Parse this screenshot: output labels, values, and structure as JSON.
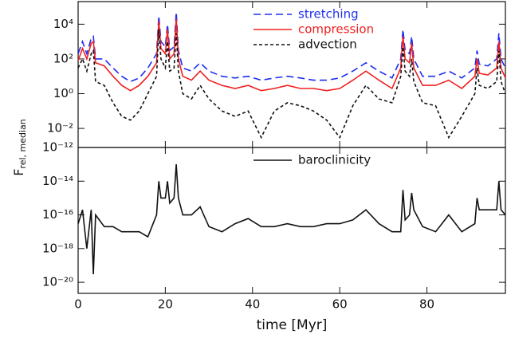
{
  "chart_data": [
    {
      "type": "line",
      "ylabel": "F",
      "ylabel_sub": "rel, median",
      "log_y": true,
      "legend": "upper right",
      "xlim": [
        0,
        98
      ],
      "xticks": [
        0,
        20,
        40,
        60,
        80
      ],
      "ylim": [
        0.0008,
        200000
      ],
      "yticks": [
        {
          "value": 0.01,
          "label": "10⁻²"
        },
        {
          "value": 1,
          "label": "10⁰"
        },
        {
          "value": 100,
          "label": "10²"
        },
        {
          "value": 10000,
          "label": "10⁴"
        }
      ],
      "x": [
        0,
        1,
        2,
        3,
        3.5,
        4,
        6,
        8,
        10,
        12,
        14,
        16,
        18,
        18.5,
        19,
        20,
        20.5,
        21,
        22,
        22.5,
        23,
        24,
        26,
        28,
        30,
        33,
        36,
        39,
        42,
        45,
        48,
        51,
        54,
        57,
        60,
        63,
        66,
        69,
        72,
        74,
        74.5,
        75,
        76,
        76.5,
        77,
        79,
        82,
        85,
        88,
        91,
        91.5,
        92,
        94,
        96,
        96.5,
        97,
        98
      ],
      "series": [
        {
          "name": "stretching",
          "color": "#1f2ff0",
          "dash": "9,5",
          "values": [
            200,
            1000,
            200,
            1500,
            2000,
            100,
            100,
            30,
            10,
            5,
            8,
            30,
            200,
            30000,
            1000,
            500,
            10000,
            300,
            500,
            50000,
            300,
            30,
            20,
            60,
            20,
            10,
            8,
            10,
            6,
            8,
            10,
            8,
            6,
            6,
            8,
            20,
            60,
            20,
            8,
            100,
            5000,
            300,
            200,
            2000,
            100,
            10,
            10,
            20,
            8,
            30,
            300,
            50,
            40,
            100,
            3000,
            100,
            30
          ]
        },
        {
          "name": "compression",
          "color": "#f02020",
          "dash": "none",
          "values": [
            80,
            400,
            100,
            800,
            1000,
            60,
            40,
            10,
            3,
            1.5,
            3,
            10,
            60,
            15000,
            400,
            200,
            5000,
            100,
            200,
            20000,
            100,
            10,
            6,
            20,
            6,
            3,
            2,
            3,
            1.5,
            2,
            3,
            2,
            2,
            1.5,
            2,
            6,
            20,
            6,
            2,
            30,
            2000,
            100,
            60,
            800,
            30,
            3,
            3,
            6,
            2,
            10,
            100,
            15,
            12,
            30,
            1000,
            30,
            8
          ]
        },
        {
          "name": "advection",
          "color": "#111111",
          "dash": "4,3",
          "values": [
            30,
            100,
            20,
            200,
            300,
            5,
            3,
            0.3,
            0.05,
            0.03,
            0.1,
            1,
            10,
            5000,
            100,
            30,
            1000,
            20,
            30,
            3000,
            20,
            1,
            0.5,
            3,
            0.5,
            0.1,
            0.05,
            0.1,
            0.003,
            0.1,
            0.3,
            0.2,
            0.1,
            0.03,
            0.003,
            0.2,
            3,
            0.5,
            0.3,
            10,
            500,
            20,
            10,
            100,
            5,
            0.3,
            0.2,
            0.003,
            0.05,
            1,
            30,
            3,
            2,
            5,
            300,
            5,
            1
          ]
        }
      ]
    },
    {
      "type": "line",
      "xlabel": "time [Myr]",
      "log_y": true,
      "legend": "upper center",
      "xlim": [
        0,
        98
      ],
      "xticks": [
        0,
        20,
        40,
        60,
        80
      ],
      "ylim": [
        2.2e-21,
        1e-12
      ],
      "yticks": [
        {
          "value": 1e-20,
          "label": "10⁻²⁰"
        },
        {
          "value": 1e-18,
          "label": "10⁻¹⁸"
        },
        {
          "value": 1e-16,
          "label": "10⁻¹⁶"
        },
        {
          "value": 1e-14,
          "label": "10⁻¹⁴"
        },
        {
          "value": 1e-12,
          "label": "10⁻¹²"
        }
      ],
      "x": [
        0,
        1,
        2,
        3,
        3.5,
        4,
        6,
        8,
        10,
        12,
        14,
        16,
        18,
        18.5,
        19,
        20,
        20.5,
        21,
        22,
        22.5,
        23,
        24,
        26,
        28,
        30,
        33,
        36,
        39,
        42,
        45,
        48,
        51,
        54,
        57,
        60,
        63,
        66,
        69,
        72,
        74,
        74.5,
        75,
        76,
        76.5,
        77,
        79,
        82,
        85,
        88,
        91,
        91.5,
        92,
        94,
        96,
        96.5,
        97,
        98
      ],
      "series": [
        {
          "name": "baroclinicity",
          "color": "#111111",
          "dash": "none",
          "values": [
            3e-17,
            2e-16,
            1e-18,
            2e-16,
            3e-20,
            1e-16,
            2e-17,
            2e-17,
            1e-17,
            1e-17,
            1e-17,
            5e-18,
            1e-16,
            1e-14,
            1e-15,
            1e-15,
            1e-14,
            5e-16,
            1e-15,
            1e-13,
            1e-15,
            1e-16,
            1e-16,
            3e-16,
            2e-17,
            1e-17,
            3e-17,
            6e-17,
            2e-17,
            2e-17,
            3e-17,
            2e-17,
            2e-17,
            3e-17,
            3e-17,
            5e-17,
            2e-16,
            3e-17,
            1e-17,
            1e-17,
            3e-15,
            5e-17,
            1e-16,
            2e-15,
            2e-16,
            2e-17,
            1e-17,
            1e-16,
            1e-17,
            3e-17,
            1e-15,
            2e-16,
            2e-16,
            2e-16,
            1e-14,
            2e-16,
            1e-16
          ]
        }
      ]
    }
  ]
}
